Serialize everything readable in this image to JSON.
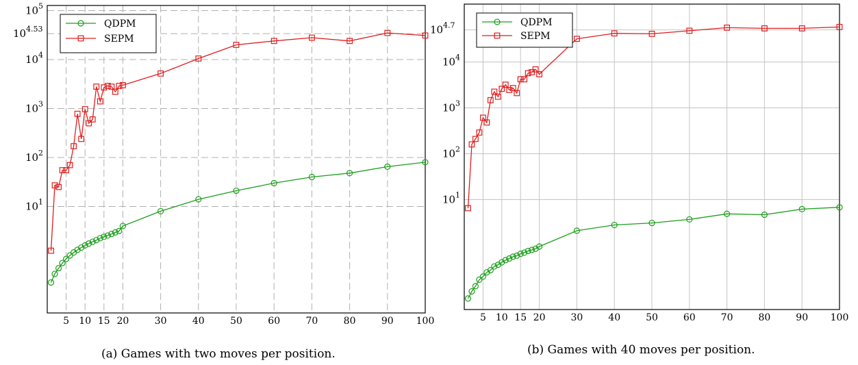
{
  "chart_data": [
    {
      "type": "line",
      "caption": "(a)  Games with two moves per position.",
      "x": [
        1,
        2,
        3,
        4,
        5,
        6,
        7,
        8,
        9,
        10,
        11,
        12,
        13,
        14,
        15,
        16,
        17,
        18,
        19,
        20,
        30,
        40,
        50,
        60,
        70,
        80,
        90,
        100
      ],
      "xticks": [
        "5",
        "10",
        "15",
        "20",
        "30",
        "40",
        "50",
        "60",
        "70",
        "80",
        "90",
        "100"
      ],
      "xlim": [
        0,
        100
      ],
      "y_scale": "log",
      "yticks": [
        "10",
        "10",
        "10",
        "10",
        "10",
        "10"
      ],
      "ytick_exponents": [
        "1",
        "2",
        "3",
        "4",
        "4.53",
        "5"
      ],
      "grid": "dashed",
      "legend_position": "top-left",
      "series": [
        {
          "name": "QDPM",
          "color": "#1a9e1a",
          "marker": "circle",
          "values": [
            0.28,
            0.42,
            0.55,
            0.7,
            0.85,
            1.0,
            1.15,
            1.3,
            1.45,
            1.6,
            1.75,
            1.9,
            2.05,
            2.25,
            2.4,
            2.55,
            2.75,
            2.95,
            3.15,
            4.0,
            8.0,
            14.0,
            21.0,
            30.0,
            40.0,
            48.0,
            65.0,
            80.0
          ]
        },
        {
          "name": "SEPM",
          "color": "#e01c1c",
          "marker": "square",
          "values": [
            1.25,
            27,
            25,
            55,
            55,
            70,
            170,
            780,
            240,
            970,
            500,
            600,
            2800,
            1400,
            2700,
            2900,
            2800,
            2200,
            2900,
            3000,
            5200,
            10500,
            20000,
            24000,
            28000,
            24000,
            35000,
            31000
          ]
        }
      ]
    },
    {
      "type": "line",
      "caption": "(b)  Games with 40 moves per position.",
      "x": [
        1,
        2,
        3,
        4,
        5,
        6,
        7,
        8,
        9,
        10,
        11,
        12,
        13,
        14,
        15,
        16,
        17,
        18,
        19,
        20,
        30,
        40,
        50,
        60,
        70,
        80,
        90,
        100
      ],
      "xticks": [
        "5",
        "10",
        "15",
        "20",
        "30",
        "40",
        "50",
        "60",
        "70",
        "80",
        "90",
        "100"
      ],
      "xlim": [
        0,
        100
      ],
      "y_scale": "log",
      "yticks": [
        "10",
        "10",
        "10",
        "10",
        "10"
      ],
      "ytick_exponents": [
        "1",
        "2",
        "3",
        "4",
        "4.7"
      ],
      "grid": "solid",
      "legend_position": "top-left",
      "series": [
        {
          "name": "QDPM",
          "color": "#1a9e1a",
          "marker": "circle",
          "values": [
            0.07,
            0.1,
            0.13,
            0.18,
            0.21,
            0.26,
            0.29,
            0.35,
            0.38,
            0.43,
            0.48,
            0.52,
            0.57,
            0.6,
            0.66,
            0.7,
            0.76,
            0.8,
            0.85,
            0.95,
            2.1,
            2.8,
            3.1,
            3.7,
            4.9,
            4.7,
            6.2,
            6.8
          ]
        },
        {
          "name": "SEPM",
          "color": "#e01c1c",
          "marker": "square",
          "values": [
            6.5,
            160,
            210,
            290,
            610,
            480,
            1470,
            2250,
            1750,
            2600,
            3200,
            2450,
            2700,
            2100,
            4200,
            4200,
            5700,
            6000,
            6900,
            5400,
            32000,
            42000,
            41000,
            48000,
            56000,
            54000,
            54000,
            58000
          ]
        }
      ]
    }
  ]
}
